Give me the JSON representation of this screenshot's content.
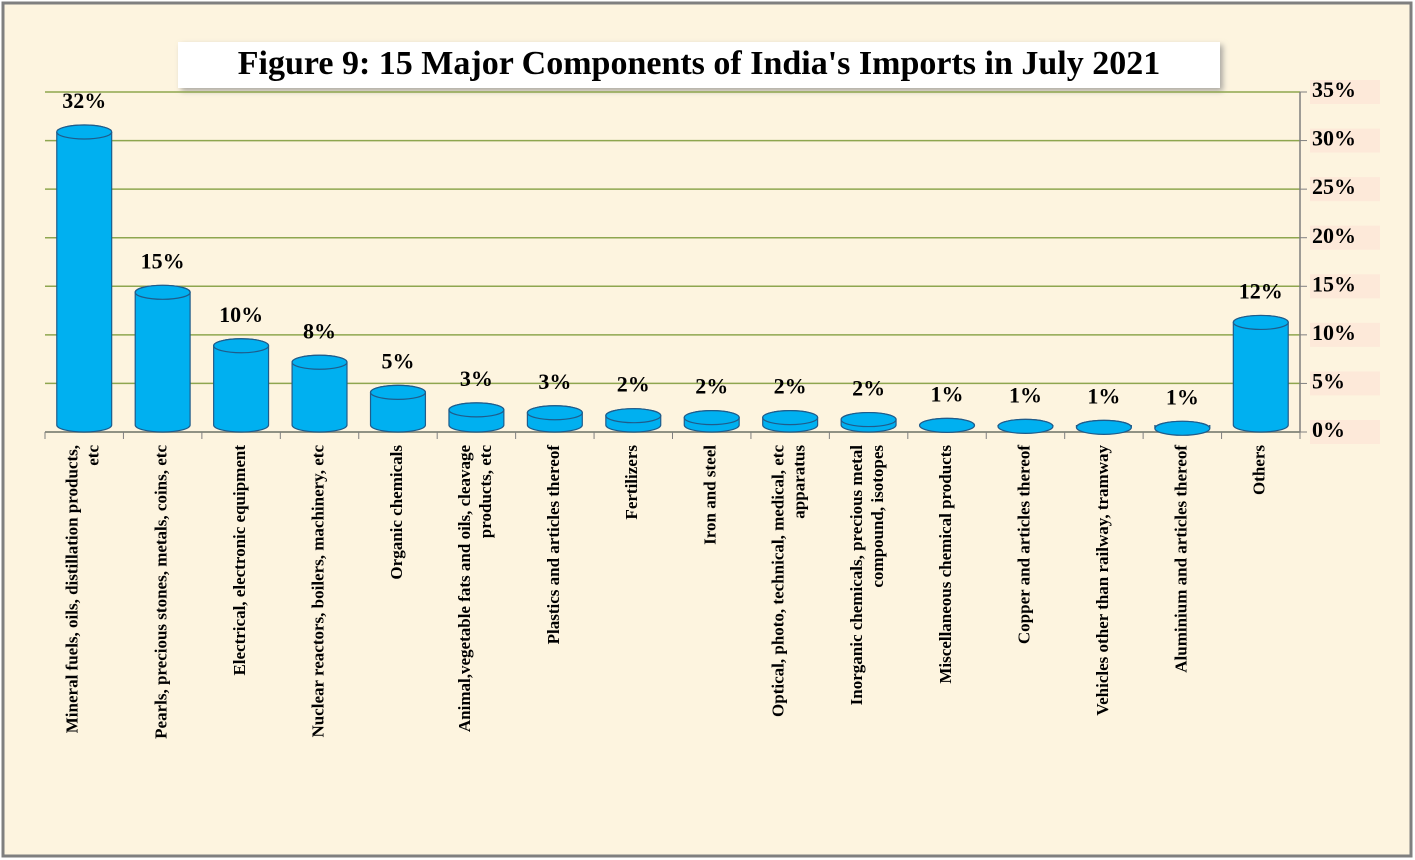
{
  "chart_data": {
    "type": "bar",
    "title": "Figure  9: 15 Major Components of India's Imports in July 2021",
    "categories": [
      "Mineral fuels, oils, distillation products, etc",
      "Pearls, precious stones, metals, coins, etc",
      "Electrical, electronic equipment",
      "Nuclear reactors, boilers, machinery, etc",
      "Organic chemicals",
      "Animal,vegetable fats and oils, cleavage products, etc",
      "Plastics and articles thereof",
      "Fertilizers",
      "Iron and steel",
      "Optical, photo, technical, medical, etc apparatus",
      "Inorganic chemicals, precious metal compound, isotopes",
      "Miscellaneous chemical products",
      "Copper and articles thereof",
      "Vehicles other than railway, tramway",
      "Aluminium and articles thereof",
      "Others"
    ],
    "values": [
      31.6,
      15.1,
      9.6,
      7.9,
      4.8,
      3.0,
      2.7,
      2.4,
      2.2,
      2.2,
      2.0,
      1.4,
      1.3,
      1.2,
      1.1,
      12.0
    ],
    "value_labels": [
      "32%",
      "15%",
      "10%",
      "8%",
      "5%",
      "3%",
      "3%",
      "2%",
      "2%",
      "2%",
      "2%",
      "1%",
      "1%",
      "1%",
      "1%",
      "12%"
    ],
    "color": "#00b0f0",
    "ylim": [
      0,
      35
    ],
    "yticks": [
      {
        "value": 0,
        "label": "0%"
      },
      {
        "value": 5,
        "label": "5%"
      },
      {
        "value": 10,
        "label": "10%"
      },
      {
        "value": 15,
        "label": "15%"
      },
      {
        "value": 20,
        "label": "20%"
      },
      {
        "value": 25,
        "label": "25%"
      },
      {
        "value": 30,
        "label": "30%"
      },
      {
        "value": 35,
        "label": "35%"
      }
    ],
    "grid": true
  }
}
